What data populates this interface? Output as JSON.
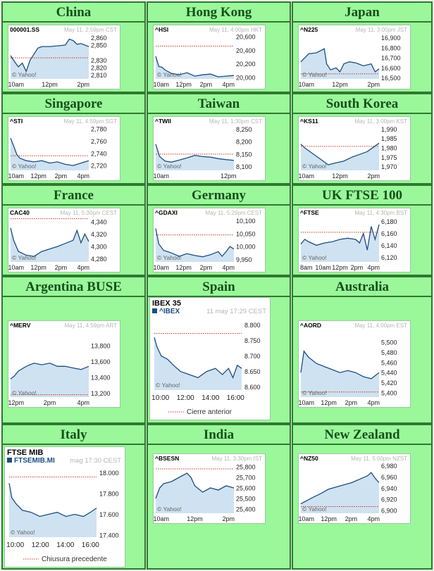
{
  "panels": [
    {
      "name": "China",
      "symbol": "000001.SS",
      "stamp": "May 11, 2:59pm CST",
      "yticks": [
        "2,860",
        "2,850",
        "2,830",
        "2,820",
        "2,810"
      ],
      "xticks": [
        "10am",
        "12pm",
        "2pm"
      ],
      "credit": "© Yahoo!",
      "chart_data": {
        "type": "area",
        "ylim": [
          2805,
          2865
        ],
        "yticks": [
          2860,
          2850,
          2830,
          2820,
          2810
        ],
        "prev_close": 2833,
        "x": [
          0,
          0.05,
          0.1,
          0.15,
          0.2,
          0.25,
          0.3,
          0.35,
          0.4,
          0.5,
          0.6,
          0.7,
          0.75,
          0.8,
          0.85,
          0.9,
          1
        ],
        "y": [
          2836,
          2828,
          2821,
          2826,
          2815,
          2830,
          2838,
          2846,
          2848,
          2848,
          2849,
          2850,
          2858,
          2856,
          2851,
          2852,
          2848
        ]
      }
    },
    {
      "name": "Hong Kong",
      "symbol": "^HSI",
      "stamp": "May 11, 4:00pm HKT",
      "yticks": [
        "20,600",
        "20,400",
        "20,200",
        "20,000"
      ],
      "xticks": [
        "10am",
        "12pm",
        "2pm",
        "4pm"
      ],
      "credit": "© Yahoo!",
      "chart_data": {
        "type": "area",
        "ylim": [
          19980,
          20640
        ],
        "yticks": [
          20600,
          20400,
          20200,
          20000
        ],
        "prev_close": 20460,
        "x": [
          0,
          0.04,
          0.08,
          0.12,
          0.2,
          0.3,
          0.4,
          0.5,
          0.6,
          0.7,
          0.8,
          0.9,
          1
        ],
        "y": [
          20310,
          20160,
          20150,
          20110,
          20060,
          20040,
          20070,
          20020,
          20040,
          20050,
          20010,
          20020,
          20030
        ]
      }
    },
    {
      "name": "Japan",
      "symbol": "^N225",
      "stamp": "May 11, 3:00pm JST",
      "yticks": [
        "16,900",
        "16,800",
        "16,700",
        "16,600",
        "16,500"
      ],
      "xticks": [
        "10am",
        "12pm",
        "2pm"
      ],
      "credit": "© Yahoo!",
      "chart_data": {
        "type": "area",
        "ylim": [
          16490,
          16940
        ],
        "yticks": [
          16900,
          16800,
          16700,
          16600,
          16500
        ],
        "prev_close": 16540,
        "x": [
          0,
          0.1,
          0.2,
          0.3,
          0.33,
          0.38,
          0.45,
          0.5,
          0.55,
          0.62,
          0.7,
          0.8,
          0.9,
          0.95,
          1
        ],
        "y": [
          16660,
          16740,
          16750,
          16790,
          16640,
          16580,
          16600,
          16560,
          16640,
          16660,
          16650,
          16620,
          16640,
          16560,
          16590
        ]
      }
    },
    {
      "name": "Singapore",
      "symbol": "^STI",
      "stamp": "May 11, 4:59pm SGT",
      "yticks": [
        "2,780",
        "2,760",
        "2,740",
        "2,720"
      ],
      "xticks": [
        "10am",
        "12pm",
        "2pm",
        "4pm"
      ],
      "credit": "© Yahoo!",
      "chart_data": {
        "type": "area",
        "ylim": [
          2712,
          2786
        ],
        "yticks": [
          2780,
          2760,
          2740,
          2720
        ],
        "prev_close": 2736,
        "x": [
          0,
          0.04,
          0.08,
          0.12,
          0.2,
          0.3,
          0.4,
          0.5,
          0.6,
          0.7,
          0.8,
          0.9,
          1
        ],
        "y": [
          2765,
          2752,
          2738,
          2732,
          2728,
          2726,
          2728,
          2724,
          2726,
          2722,
          2720,
          2724,
          2728
        ]
      }
    },
    {
      "name": "Taiwan",
      "symbol": "^TWII",
      "stamp": "May 11, 1:30pm CST",
      "yticks": [
        "8,250",
        "8,200",
        "8,150",
        "8,100"
      ],
      "xticks": [
        "10am",
        "12pm"
      ],
      "credit": "© Yahoo!",
      "chart_data": {
        "type": "area",
        "ylim": [
          8085,
          8265
        ],
        "yticks": [
          8250,
          8200,
          8150,
          8100
        ],
        "prev_close": 8150,
        "x": [
          0,
          0.05,
          0.12,
          0.2,
          0.3,
          0.4,
          0.5,
          0.6,
          0.7,
          0.8,
          0.9,
          1
        ],
        "y": [
          8190,
          8140,
          8122,
          8118,
          8126,
          8135,
          8145,
          8140,
          8138,
          8132,
          8128,
          8125
        ]
      }
    },
    {
      "name": "South Korea",
      "symbol": "^KS11",
      "stamp": "May 11, 3:00pm KST",
      "yticks": [
        "1,990",
        "1,985",
        "1,980",
        "1,975",
        "1,970"
      ],
      "xticks": [
        "10am",
        "12pm",
        "2pm"
      ],
      "credit": "© Yahoo!",
      "chart_data": {
        "type": "area",
        "ylim": [
          1968,
          1992
        ],
        "yticks": [
          1990,
          1985,
          1980,
          1975,
          1970
        ],
        "prev_close": 1980.8,
        "x": [
          0,
          0.05,
          0.15,
          0.25,
          0.35,
          0.45,
          0.55,
          0.65,
          0.75,
          0.85,
          0.95,
          1
        ],
        "y": [
          1982,
          1980,
          1977,
          1974,
          1971,
          1972,
          1973,
          1975,
          1976.5,
          1978,
          1981,
          1982.5
        ]
      }
    },
    {
      "name": "France",
      "symbol": "CAC40",
      "stamp": "May 11, 5:30pm CEST",
      "yticks": [
        "4,340",
        "4,320",
        "4,300",
        "4,280"
      ],
      "xticks": [
        "10am",
        "12pm",
        "2pm",
        "4pm"
      ],
      "credit": "© Yahoo!",
      "chart_data": {
        "type": "area",
        "ylim": [
          4275,
          4348
        ],
        "yticks": [
          4340,
          4320,
          4300,
          4280
        ],
        "prev_close": 4345,
        "x": [
          0,
          0.04,
          0.1,
          0.2,
          0.3,
          0.4,
          0.5,
          0.6,
          0.7,
          0.8,
          0.85,
          0.9,
          0.95,
          1
        ],
        "y": [
          4330,
          4310,
          4292,
          4286,
          4284,
          4292,
          4296,
          4300,
          4305,
          4310,
          4326,
          4306,
          4320,
          4308
        ]
      }
    },
    {
      "name": "Germany",
      "symbol": "^GDAXI",
      "stamp": "May 11, 5:29pm CEST",
      "yticks": [
        "10,100",
        "10,050",
        "10,000",
        "9,950"
      ],
      "xticks": [
        "10am",
        "12pm",
        "2pm",
        "4pm"
      ],
      "credit": "© Yahoo!",
      "chart_data": {
        "type": "area",
        "ylim": [
          9940,
          10115
        ],
        "yticks": [
          10100,
          10050,
          10000,
          9950
        ],
        "prev_close": 10045,
        "x": [
          0,
          0.04,
          0.1,
          0.2,
          0.3,
          0.4,
          0.5,
          0.6,
          0.7,
          0.8,
          0.85,
          0.9,
          0.95,
          1
        ],
        "y": [
          10070,
          10010,
          9985,
          9975,
          9962,
          9972,
          9965,
          9960,
          9968,
          9980,
          9962,
          9980,
          10000,
          9990
        ]
      }
    },
    {
      "name": "UK FTSE 100",
      "symbol": "^FTSE",
      "stamp": "May 11, 4:30pm BST",
      "yticks": [
        "6,180",
        "6,160",
        "6,140",
        "6,120"
      ],
      "xticks": [
        "8am",
        "10am",
        "12pm",
        "2pm",
        "4pm"
      ],
      "credit": "© Yahoo!",
      "chart_data": {
        "type": "area",
        "ylim": [
          6112,
          6188
        ],
        "yticks": [
          6180,
          6160,
          6140,
          6120
        ],
        "prev_close": 6162,
        "x": [
          0,
          0.05,
          0.1,
          0.2,
          0.3,
          0.4,
          0.5,
          0.6,
          0.7,
          0.75,
          0.8,
          0.85,
          0.9,
          0.95,
          1
        ],
        "y": [
          6142,
          6150,
          6146,
          6140,
          6144,
          6146,
          6150,
          6152,
          6150,
          6144,
          6160,
          6132,
          6172,
          6150,
          6175
        ]
      }
    },
    {
      "name": "Argentina BUSE",
      "symbol": "^MERV",
      "stamp": "May 11, 4:59pm ART",
      "yticks": [
        "13,800",
        "13,600",
        "13,400",
        "13,200"
      ],
      "xticks": [
        "12pm",
        "2pm",
        "4pm"
      ],
      "credit": "© Yahoo!",
      "chart_data": {
        "type": "area",
        "ylim": [
          13150,
          13900
        ],
        "yticks": [
          13800,
          13600,
          13400,
          13200
        ],
        "prev_close": 13180,
        "x": [
          0,
          0.05,
          0.1,
          0.2,
          0.3,
          0.4,
          0.5,
          0.6,
          0.7,
          0.8,
          0.9,
          1
        ],
        "y": [
          13380,
          13420,
          13480,
          13540,
          13580,
          13560,
          13580,
          13540,
          13540,
          13520,
          13500,
          13540
        ]
      }
    },
    {
      "name": "Spain",
      "index_title": "IBEX 35",
      "symbol": "^IBEX",
      "stamp": "11 may 17:29 CEST",
      "yticks": [
        "8.800",
        "8.750",
        "8.700",
        "8.650",
        "8.600"
      ],
      "xticks": [
        "10:00",
        "12:00",
        "14:00",
        "16:00"
      ],
      "credit": "© Yahoo!",
      "legend": "Cierre anterior",
      "chart_data": {
        "type": "area",
        "ylim": [
          8590,
          8815
        ],
        "yticks": [
          8800,
          8750,
          8700,
          8650,
          8600
        ],
        "prev_close": 8773,
        "x": [
          0,
          0.03,
          0.08,
          0.15,
          0.22,
          0.3,
          0.4,
          0.5,
          0.6,
          0.7,
          0.78,
          0.85,
          0.9,
          0.95,
          1
        ],
        "y": [
          8760,
          8730,
          8700,
          8690,
          8670,
          8650,
          8640,
          8630,
          8650,
          8660,
          8640,
          8660,
          8630,
          8670,
          8660
        ]
      }
    },
    {
      "name": "Australia",
      "symbol": "^AORD",
      "stamp": "May 11, 4:00pm EST",
      "yticks": [
        "5,500",
        "5,480",
        "5,460",
        "5,440",
        "5,420",
        "5,400"
      ],
      "xticks": [
        "10am",
        "12pm",
        "2pm",
        "4pm"
      ],
      "credit": "© Yahoo!",
      "chart_data": {
        "type": "area",
        "ylim": [
          5392,
          5508
        ],
        "yticks": [
          5500,
          5480,
          5460,
          5440,
          5420,
          5400
        ],
        "prev_close": 5402,
        "x": [
          0,
          0.04,
          0.1,
          0.2,
          0.3,
          0.4,
          0.5,
          0.6,
          0.7,
          0.8,
          0.9,
          1
        ],
        "y": [
          5440,
          5482,
          5470,
          5458,
          5452,
          5446,
          5440,
          5444,
          5440,
          5432,
          5428,
          5440
        ]
      }
    },
    {
      "name": "Italy",
      "index_title": "FTSE MIB",
      "symbol": "FTSEMIB.MI",
      "stamp": "mag 17:30 CEST",
      "yticks": [
        "18.000",
        "17.800",
        "17.600",
        "17.400"
      ],
      "xticks": [
        "10:00",
        "12:00",
        "14:00",
        "16:00"
      ],
      "credit": "© Yahoo!",
      "legend": "Chiusura precedente",
      "chart_data": {
        "type": "area",
        "ylim": [
          17380,
          18030
        ],
        "yticks": [
          18000,
          17800,
          17600,
          17400
        ],
        "prev_close": 17960,
        "x": [
          0,
          0.03,
          0.08,
          0.15,
          0.25,
          0.35,
          0.45,
          0.55,
          0.65,
          0.75,
          0.85,
          0.93,
          1
        ],
        "y": [
          17900,
          17760,
          17700,
          17640,
          17620,
          17580,
          17600,
          17620,
          17580,
          17600,
          17580,
          17620,
          17660
        ]
      }
    },
    {
      "name": "India",
      "symbol": "^BSESN",
      "stamp": "May 11, 3:30pm IST",
      "yticks": [
        "25,800",
        "25,700",
        "25,600",
        "25,500",
        "25,400"
      ],
      "xticks": [
        "10am",
        "12pm",
        "2pm"
      ],
      "credit": "© Yahoo!",
      "chart_data": {
        "type": "area",
        "ylim": [
          25360,
          25840
        ],
        "yticks": [
          25800,
          25700,
          25600,
          25500,
          25400
        ],
        "prev_close": 25780,
        "x": [
          0,
          0.05,
          0.1,
          0.2,
          0.3,
          0.4,
          0.45,
          0.5,
          0.6,
          0.7,
          0.8,
          0.9,
          1
        ],
        "y": [
          25500,
          25600,
          25640,
          25660,
          25700,
          25740,
          25700,
          25620,
          25560,
          25600,
          25580,
          25620,
          25600
        ]
      }
    },
    {
      "name": "New Zealand",
      "symbol": "^NZ50",
      "stamp": "May 11, 5:00pm NZST",
      "yticks": [
        "6,980",
        "6,960",
        "6,940",
        "6,920",
        "6,900"
      ],
      "xticks": [
        "10am",
        "12pm",
        "2pm",
        "4pm"
      ],
      "credit": "© Yahoo!",
      "chart_data": {
        "type": "area",
        "ylim": [
          6895,
          6986
        ],
        "yticks": [
          6980,
          6960,
          6940,
          6920,
          6900
        ],
        "prev_close": 6907,
        "x": [
          0,
          0.08,
          0.16,
          0.25,
          0.35,
          0.45,
          0.55,
          0.65,
          0.75,
          0.85,
          0.9,
          0.95,
          1
        ],
        "y": [
          6912,
          6918,
          6924,
          6930,
          6938,
          6942,
          6946,
          6950,
          6956,
          6962,
          6968,
          6958,
          6950
        ]
      }
    }
  ],
  "colors": {
    "cell_bg": "#9af79a",
    "border": "#2f7a2f",
    "title": "#15501a",
    "line": "#1c4e82",
    "fill": "#cfe2f1",
    "prev_close": "#c0392b",
    "axis_text": "#222222",
    "stamp_text": "#b5b5b5",
    "credit_text": "#666666",
    "index_square": "#1c4e82"
  }
}
